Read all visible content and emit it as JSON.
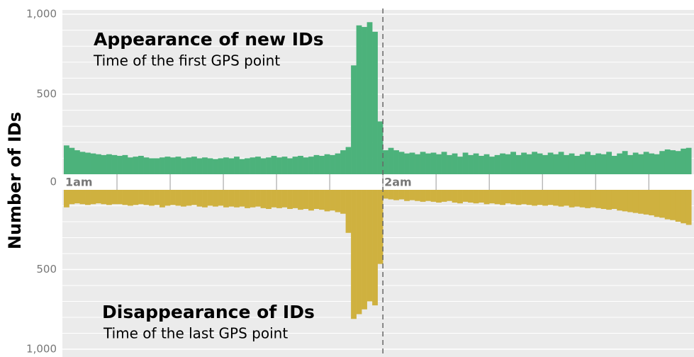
{
  "chart_data": {
    "type": "mirrored-bar",
    "ylabel": "Number of IDs",
    "xlim": [
      0,
      118.5
    ],
    "xticks": [
      {
        "value": 0,
        "label": "1am"
      },
      {
        "value": 60,
        "label": "2am"
      }
    ],
    "xminor_ticks": [
      10,
      20,
      30,
      40,
      50,
      60,
      70,
      80,
      90,
      100,
      110
    ],
    "vline": 60,
    "ylim": [
      0,
      1000
    ],
    "yticks": [
      0,
      500,
      {
        "value": 1000,
        "label": "1,000"
      }
    ],
    "yminor_ticks": [
      100,
      200,
      300,
      400,
      600,
      700,
      800,
      900
    ],
    "grid": true,
    "x": [
      0,
      1,
      2,
      3,
      4,
      5,
      6,
      7,
      8,
      9,
      10,
      11,
      12,
      13,
      14,
      15,
      16,
      17,
      18,
      19,
      20,
      21,
      22,
      23,
      24,
      25,
      26,
      27,
      28,
      29,
      30,
      31,
      32,
      33,
      34,
      35,
      36,
      37,
      38,
      39,
      40,
      41,
      42,
      43,
      44,
      45,
      46,
      47,
      48,
      49,
      50,
      51,
      52,
      53,
      54,
      55,
      56,
      57,
      58,
      59,
      60,
      61,
      62,
      63,
      64,
      65,
      66,
      67,
      68,
      69,
      70,
      71,
      72,
      73,
      74,
      75,
      76,
      77,
      78,
      79,
      80,
      81,
      82,
      83,
      84,
      85,
      86,
      87,
      88,
      89,
      90,
      91,
      92,
      93,
      94,
      95,
      96,
      97,
      98,
      99,
      100,
      101,
      102,
      103,
      104,
      105,
      106,
      107,
      108,
      109,
      110,
      111,
      112,
      113,
      114,
      115,
      116,
      117
    ],
    "series": [
      {
        "title": "Appearance of new IDs",
        "subtitle": "Time of the first GPS point",
        "color": "#4cb27b",
        "values": [
          180,
          165,
          150,
          140,
          135,
          130,
          125,
          120,
          125,
          120,
          115,
          120,
          105,
          110,
          115,
          105,
          100,
          100,
          105,
          110,
          105,
          110,
          100,
          105,
          110,
          100,
          105,
          100,
          95,
          100,
          105,
          100,
          110,
          95,
          100,
          105,
          110,
          100,
          105,
          115,
          105,
          110,
          100,
          110,
          115,
          105,
          110,
          120,
          115,
          125,
          120,
          130,
          150,
          170,
          680,
          930,
          920,
          950,
          890,
          330,
          150,
          165,
          150,
          140,
          130,
          135,
          125,
          140,
          130,
          135,
          125,
          140,
          120,
          130,
          110,
          135,
          120,
          130,
          115,
          125,
          110,
          120,
          130,
          125,
          140,
          120,
          135,
          125,
          140,
          130,
          120,
          135,
          125,
          140,
          120,
          130,
          115,
          125,
          140,
          120,
          130,
          125,
          140,
          115,
          130,
          145,
          120,
          135,
          125,
          140,
          130,
          125,
          145,
          155,
          150,
          145,
          160,
          165
        ]
      },
      {
        "title": "Disappearance of IDs",
        "subtitle": "Time of the last GPS point",
        "color": "#cfb13f",
        "values": [
          110,
          90,
          85,
          90,
          95,
          90,
          85,
          90,
          95,
          90,
          90,
          95,
          100,
          95,
          90,
          95,
          100,
          95,
          110,
          100,
          95,
          100,
          105,
          100,
          95,
          105,
          110,
          100,
          105,
          100,
          110,
          105,
          110,
          105,
          115,
          110,
          105,
          115,
          120,
          110,
          115,
          110,
          120,
          115,
          125,
          120,
          130,
          120,
          125,
          135,
          130,
          140,
          150,
          270,
          810,
          780,
          750,
          700,
          725,
          465,
          55,
          60,
          65,
          60,
          70,
          65,
          70,
          75,
          70,
          75,
          80,
          75,
          70,
          80,
          85,
          75,
          80,
          85,
          80,
          90,
          85,
          90,
          95,
          85,
          90,
          95,
          90,
          95,
          100,
          95,
          100,
          95,
          100,
          105,
          100,
          110,
          105,
          110,
          115,
          110,
          115,
          120,
          125,
          120,
          130,
          135,
          140,
          145,
          150,
          155,
          160,
          170,
          175,
          185,
          190,
          200,
          210,
          220
        ]
      }
    ]
  }
}
